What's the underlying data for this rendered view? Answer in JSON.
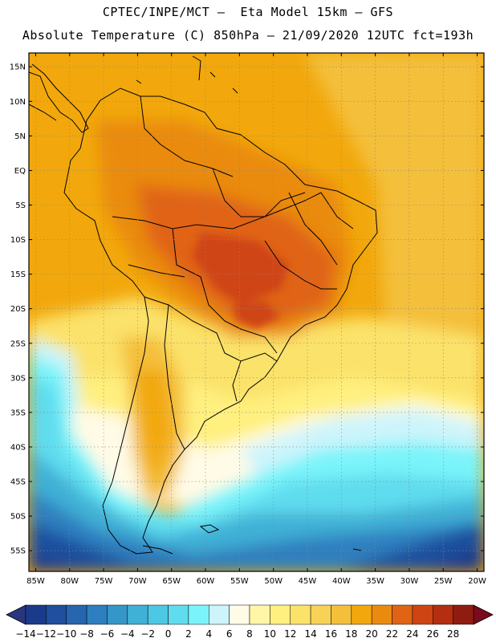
{
  "header": {
    "line1": "CPTEC/INPE/MCT –  Eta Model 15km – GFS",
    "line2": "Absolute Temperature (C) 850hPa – 21/09/2020 12UTC fct=193h"
  },
  "map": {
    "lat_labels": [
      "15N",
      "10N",
      "5N",
      "EQ",
      "5S",
      "10S",
      "15S",
      "20S",
      "25S",
      "30S",
      "35S",
      "40S",
      "45S",
      "50S",
      "55S"
    ],
    "lon_labels": [
      "85W",
      "80W",
      "75W",
      "70W",
      "65W",
      "60W",
      "55W",
      "50W",
      "45W",
      "40W",
      "35W",
      "30W",
      "25W",
      "20W"
    ],
    "lat_values": [
      15,
      10,
      5,
      0,
      -5,
      -10,
      -15,
      -20,
      -25,
      -30,
      -35,
      -40,
      -45,
      -50,
      -55
    ],
    "lon_values": [
      -85,
      -80,
      -75,
      -70,
      -65,
      -60,
      -55,
      -50,
      -45,
      -40,
      -35,
      -30,
      -25,
      -20
    ],
    "extent": {
      "lon_min": -86,
      "lon_max": -19,
      "lat_min": -58,
      "lat_max": 17
    }
  },
  "colorbar": {
    "labels": [
      "-14",
      "-12",
      "-10",
      "-8",
      "-6",
      "-4",
      "-2",
      "0",
      "2",
      "4",
      "6",
      "8",
      "10",
      "12",
      "14",
      "16",
      "18",
      "20",
      "22",
      "24",
      "26",
      "28"
    ],
    "colors": [
      "#1a3a8c",
      "#1f4f9e",
      "#2666ae",
      "#2d7fbf",
      "#3597c8",
      "#3fb0d6",
      "#4cc7e4",
      "#5fdcee",
      "#7af4fa",
      "#cdf4fb",
      "#fffbe6",
      "#fff6a8",
      "#fff07f",
      "#fbe26a",
      "#f7d256",
      "#f4bf3a",
      "#f2a80c",
      "#ea8b10",
      "#e06414",
      "#cf4413",
      "#b42e12",
      "#8f1c10"
    ],
    "under_color": "#2a3580",
    "over_color": "#7a0b1c"
  },
  "temperature_field": {
    "unit": "C",
    "level": "850hPa",
    "summary": [
      {
        "region": "Central Brazil",
        "approx": "24"
      },
      {
        "region": "Northern South America",
        "approx": "18-22"
      },
      {
        "region": "Tropical Atlantic",
        "approx": "18"
      },
      {
        "region": "Patagonia / Southern Atlantic",
        "approx": "-4 to 6"
      },
      {
        "region": "Drake Passage",
        "approx": "-14 to -8"
      }
    ]
  }
}
